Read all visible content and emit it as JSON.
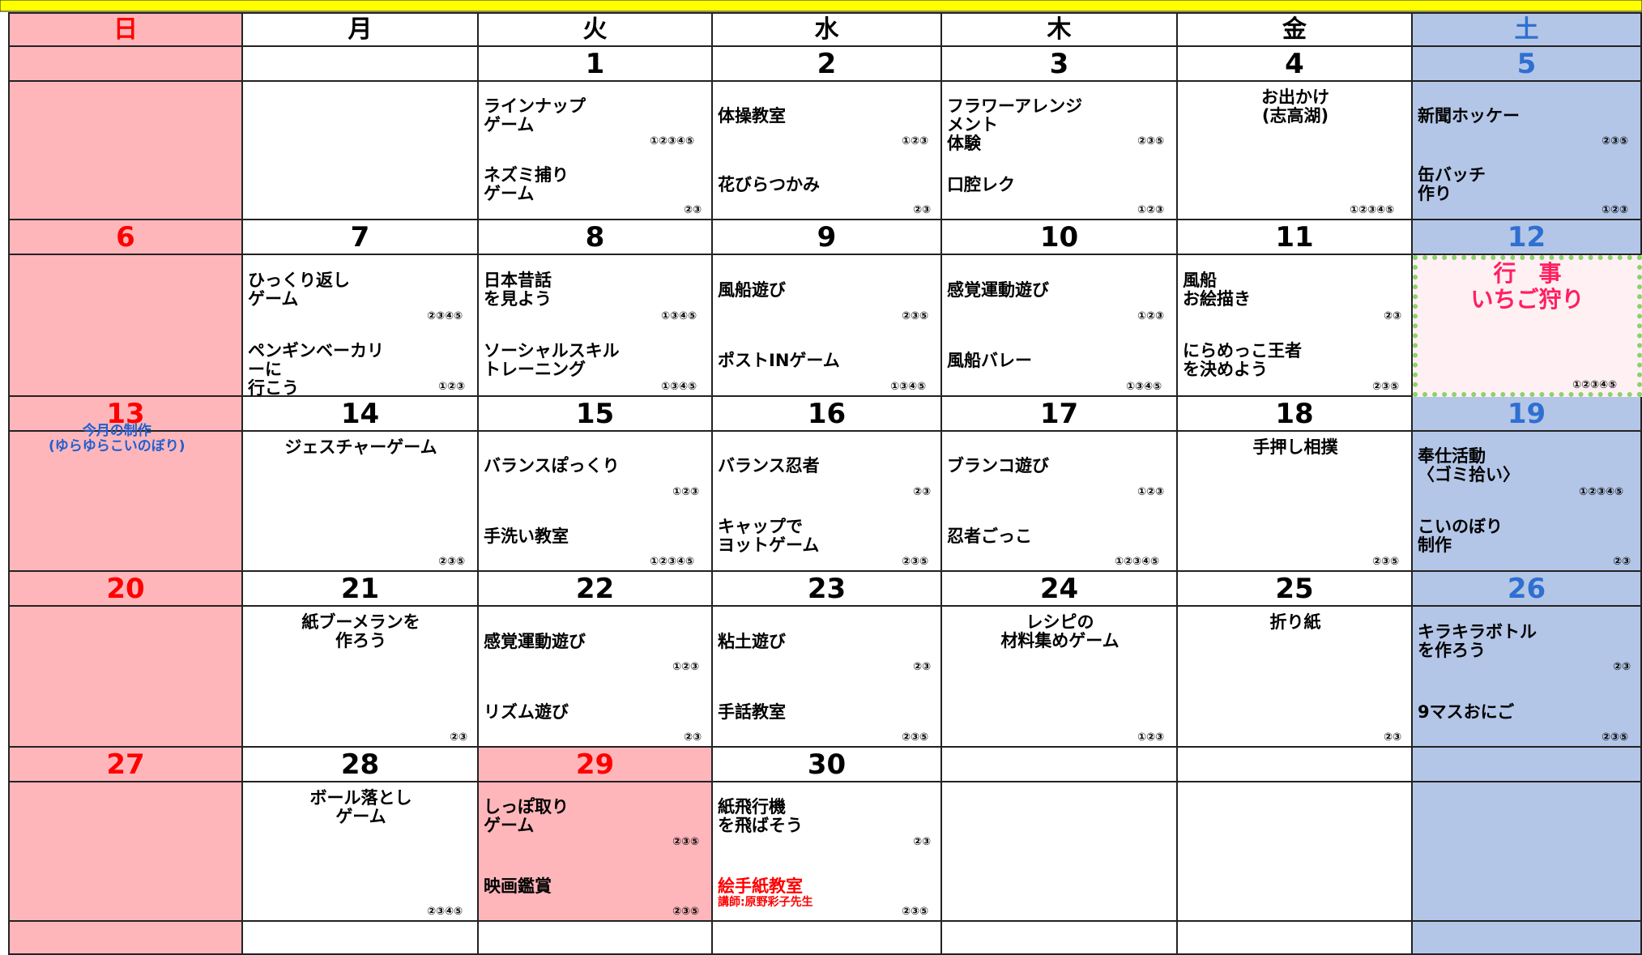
{
  "days": [
    "日",
    "月",
    "火",
    "水",
    "木",
    "金",
    "土"
  ],
  "weeks": [
    {
      "dates": [
        null,
        null,
        1,
        2,
        3,
        4,
        5
      ],
      "cells": [
        {
          "diagonal": true
        },
        {},
        {
          "items": [
            {
              "text": "ラインナップ\nゲーム",
              "nums": "①②③④⑤"
            },
            {
              "text": "ネズミ捕り\nゲーム",
              "nums": "②③"
            }
          ]
        },
        {
          "items": [
            {
              "text": "体操教室",
              "nums": "①②③"
            },
            {
              "text": "花びらつかみ",
              "nums": "②③"
            }
          ]
        },
        {
          "items": [
            {
              "text": "フラワーアレンジメント\n体験",
              "nums": "②③⑤"
            },
            {
              "text": "口腔レク",
              "nums": "①②③"
            }
          ]
        },
        {
          "items": [
            {
              "text": "お出かけ\n(志高湖)",
              "nums": "①②③④⑤"
            }
          ]
        },
        {
          "items": [
            {
              "text": "新聞ホッケー",
              "nums": "②③⑤"
            },
            {
              "text": "缶バッチ\n作り",
              "nums": "①②③"
            }
          ]
        }
      ]
    },
    {
      "dates": [
        6,
        7,
        8,
        9,
        10,
        11,
        12
      ],
      "cells": [
        {
          "diagonal": true
        },
        {
          "items": [
            {
              "text": "ひっくり返し\nゲーム",
              "nums": "②③④⑤"
            },
            {
              "text": "ペンギンベーカリーに\n行こう",
              "nums": "①②③"
            }
          ]
        },
        {
          "items": [
            {
              "text": "日本昔話\nを見よう",
              "nums": "①③④⑤"
            },
            {
              "text": "ソーシャルスキル\nトレーニング",
              "nums": "①③④⑤"
            }
          ]
        },
        {
          "items": [
            {
              "text": "風船遊び",
              "nums": "②③⑤"
            },
            {
              "text": "ポストINゲーム",
              "nums": "①③④⑤"
            }
          ]
        },
        {
          "items": [
            {
              "text": "感覚運動遊び",
              "nums": "①②③"
            },
            {
              "text": "風船バレー",
              "nums": "①③④⑤"
            }
          ]
        },
        {
          "items": [
            {
              "text": "風船\nお絵描き",
              "nums": "②③"
            },
            {
              "text": "にらめっこ王者\nを決めよう",
              "nums": "②③⑤"
            }
          ]
        },
        {
          "event_label": "行　事",
          "event_name": "いちご狩り",
          "nums": "①②③④⑤"
        }
      ]
    },
    {
      "dates": [
        13,
        14,
        15,
        16,
        17,
        18,
        19
      ],
      "cells": [
        {
          "diagonal": true,
          "note": "今月の制作\n(ゆらゆらこいのぼり)"
        },
        {
          "items": [
            {
              "text": "ジェスチャーゲーム",
              "nums": "②③⑤"
            }
          ]
        },
        {
          "items": [
            {
              "text": "バランスぽっくり",
              "nums": "①②③"
            },
            {
              "text": "手洗い教室",
              "nums": "①②③④⑤"
            }
          ]
        },
        {
          "items": [
            {
              "text": "バランス忍者",
              "nums": "②③"
            },
            {
              "text": "キャップで\nヨットゲーム",
              "nums": "②③⑤"
            }
          ]
        },
        {
          "items": [
            {
              "text": "ブランコ遊び",
              "nums": "①②③"
            },
            {
              "text": "忍者ごっこ",
              "nums": "①②③④⑤"
            }
          ]
        },
        {
          "items": [
            {
              "text": "手押し相撲",
              "nums": "②③⑤"
            }
          ]
        },
        {
          "items": [
            {
              "text": "奉仕活動\n〈ゴミ拾い〉",
              "nums": "①②③④⑤"
            },
            {
              "text": "こいのぼり\n制作",
              "nums": "②③"
            }
          ]
        }
      ]
    },
    {
      "dates": [
        20,
        21,
        22,
        23,
        24,
        25,
        26
      ],
      "cells": [
        {
          "diagonal": true
        },
        {
          "items": [
            {
              "text": "紙ブーメランを\n作ろう",
              "nums": "②③"
            }
          ]
        },
        {
          "items": [
            {
              "text": "感覚運動遊び",
              "nums": "①②③"
            },
            {
              "text": "リズム遊び",
              "nums": "②③"
            }
          ]
        },
        {
          "items": [
            {
              "text": "粘土遊び",
              "nums": "②③"
            },
            {
              "text": "手話教室",
              "nums": "②③⑤"
            }
          ]
        },
        {
          "items": [
            {
              "text": "レシピの\n材料集めゲーム",
              "nums": "①②③"
            }
          ]
        },
        {
          "items": [
            {
              "text": "折り紙",
              "nums": "②③"
            }
          ]
        },
        {
          "items": [
            {
              "text": "キラキラボトル\nを作ろう",
              "nums": "②③"
            },
            {
              "text": "9マスおにご",
              "nums": "②③⑤"
            }
          ]
        }
      ]
    },
    {
      "dates": [
        27,
        28,
        29,
        30,
        null,
        null,
        null
      ],
      "cells": [
        {
          "diagonal": true
        },
        {
          "items": [
            {
              "text": "ボール落とし\nゲーム",
              "nums": "②③④⑤"
            }
          ]
        },
        {
          "highlight": true,
          "items": [
            {
              "text": "しっぽ取り\nゲーム",
              "nums": "②③⑤"
            },
            {
              "text": "映画鑑賞",
              "nums": "②③⑤"
            }
          ]
        },
        {
          "items": [
            {
              "text": "紙飛行機\nを飛ばそう",
              "nums": "②③"
            },
            {
              "text": "絵手紙教室",
              "color": "#ff0000",
              "sub": "講師:原野彩子先生",
              "nums": "②③⑤"
            }
          ]
        },
        {},
        {},
        {}
      ]
    }
  ]
}
